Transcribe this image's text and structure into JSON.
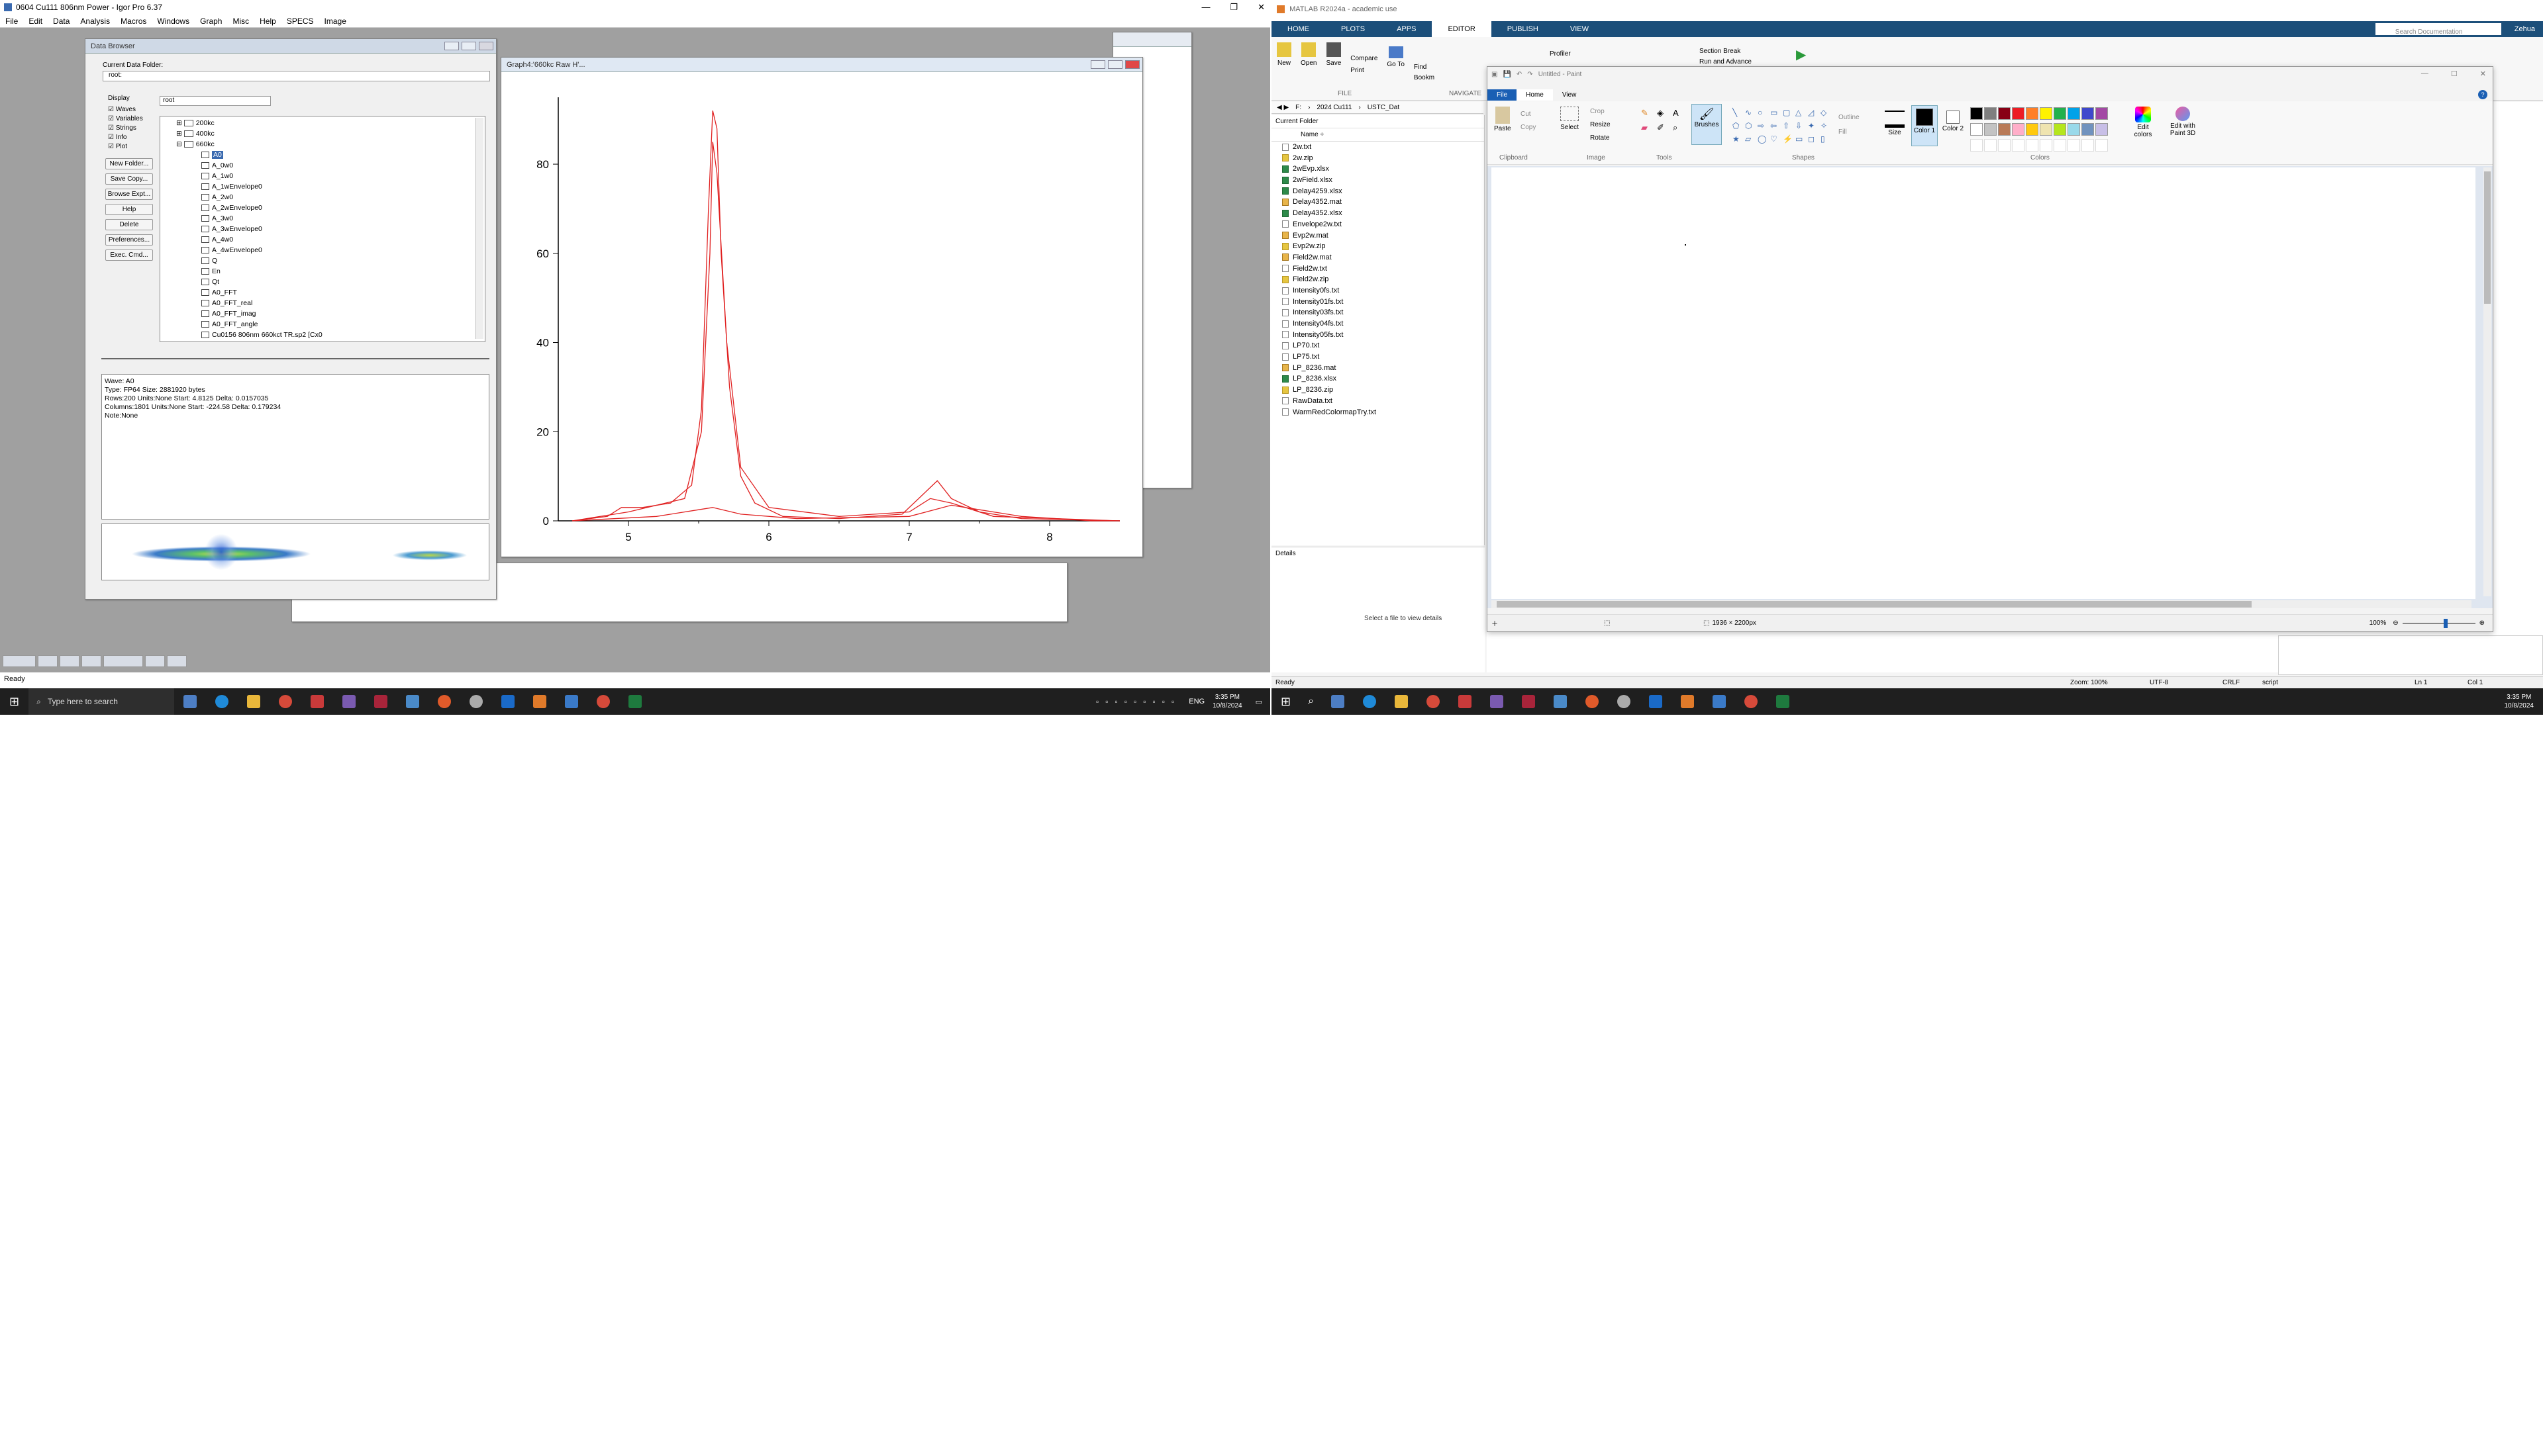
{
  "igor": {
    "title": "0604 Cu111 806nm Power - Igor Pro 6.37",
    "menu": [
      "File",
      "Edit",
      "Data",
      "Analysis",
      "Macros",
      "Windows",
      "Graph",
      "Misc",
      "Help",
      "SPECS",
      "Image"
    ],
    "data_browser": {
      "title": "Data Browser",
      "current_folder_label": "Current Data Folder:",
      "current_folder_value": "root:",
      "display_label": "Display",
      "display_select": "root",
      "checkboxes": [
        "Waves",
        "Variables",
        "Strings",
        "Info",
        "Plot"
      ],
      "buttons": [
        "New Folder...",
        "Save Copy...",
        "Browse Expt...",
        "Help",
        "Delete",
        "Preferences...",
        "Exec. Cmd..."
      ],
      "folders": [
        "200kc",
        "400kc",
        "660kc"
      ],
      "waves": [
        "A0",
        "A_0w0",
        "A_1w0",
        "A_1wEnvelope0",
        "A_2w0",
        "A_2wEnvelope0",
        "A_3w0",
        "A_3wEnvelope0",
        "A_4w0",
        "A_4wEnvelope0",
        "Q",
        "En",
        "Qt",
        "A0_FFT",
        "A0_FFT_real",
        "A0_FFT_imag",
        "A0_FFT_angle",
        "Cu0156 806nm 660kct TR.sp2 [Cx0"
      ],
      "info": {
        "wave": "Wave: A0",
        "type": "Type: FP64  Size: 2881920 bytes",
        "rows": "Rows:200 Units:None Start: 4.8125 Delta: 0.0157035",
        "cols": "Columns:1801 Units:None Start: -224.58 Delta: 0.179234",
        "note": "Note:None"
      }
    },
    "graph": {
      "title": "Graph4:'660kc Raw H'...",
      "y_ticks": [
        "0",
        "20",
        "40",
        "60",
        "80"
      ],
      "x_ticks": [
        "5",
        "6",
        "7",
        "8"
      ]
    },
    "status": "Ready",
    "taskbar": {
      "search": "Type here to search",
      "lang": "ENG",
      "time": "3:35 PM",
      "date": "10/8/2024"
    }
  },
  "chart_data": {
    "type": "line",
    "xlim": [
      4.5,
      8.5
    ],
    "ylim": [
      0,
      95
    ],
    "x_ticks": [
      5,
      6,
      7,
      8
    ],
    "y_ticks": [
      0,
      20,
      40,
      60,
      80
    ],
    "series": [
      {
        "points": [
          [
            4.6,
            0
          ],
          [
            4.85,
            1
          ],
          [
            4.95,
            3
          ],
          [
            5.1,
            3
          ],
          [
            5.3,
            4
          ],
          [
            5.45,
            8
          ],
          [
            5.52,
            25
          ],
          [
            5.57,
            70
          ],
          [
            5.6,
            92
          ],
          [
            5.63,
            88
          ],
          [
            5.66,
            60
          ],
          [
            5.72,
            30
          ],
          [
            5.8,
            10
          ],
          [
            5.9,
            4
          ],
          [
            6.1,
            1
          ],
          [
            6.5,
            0.5
          ],
          [
            6.95,
            1.5
          ],
          [
            7.1,
            6
          ],
          [
            7.2,
            9
          ],
          [
            7.3,
            5
          ],
          [
            7.5,
            2
          ],
          [
            7.8,
            0.5
          ],
          [
            8.5,
            0
          ]
        ]
      },
      {
        "points": [
          [
            4.6,
            0
          ],
          [
            5.0,
            2
          ],
          [
            5.4,
            5
          ],
          [
            5.52,
            20
          ],
          [
            5.58,
            60
          ],
          [
            5.6,
            85
          ],
          [
            5.63,
            78
          ],
          [
            5.7,
            40
          ],
          [
            5.8,
            12
          ],
          [
            6.0,
            3
          ],
          [
            6.5,
            1
          ],
          [
            7.0,
            2
          ],
          [
            7.15,
            5
          ],
          [
            7.3,
            4
          ],
          [
            7.6,
            1
          ],
          [
            8.5,
            0
          ]
        ]
      },
      {
        "points": [
          [
            4.6,
            0
          ],
          [
            5.2,
            1
          ],
          [
            5.5,
            2.5
          ],
          [
            5.6,
            3
          ],
          [
            5.8,
            1.5
          ],
          [
            6.2,
            0.5
          ],
          [
            7.0,
            1
          ],
          [
            7.3,
            3.5
          ],
          [
            7.5,
            2.5
          ],
          [
            7.8,
            1
          ],
          [
            8.3,
            0
          ],
          [
            8.5,
            0
          ]
        ]
      }
    ]
  },
  "matlab": {
    "title": "MATLAB R2024a - academic use",
    "tabs": [
      "HOME",
      "PLOTS",
      "APPS",
      "EDITOR",
      "PUBLISH",
      "VIEW"
    ],
    "active_tab": "EDITOR",
    "search_placeholder": "Search Documentation",
    "user": "Zehua",
    "ribbon": {
      "new": "New",
      "open": "Open",
      "save": "Save",
      "compare": "Compare",
      "print": "Print",
      "goto": "Go To",
      "find": "Find",
      "bookmark": "Bookm",
      "profiler": "Profiler",
      "section_break": "Section Break",
      "run_advance": "Run and Advance",
      "file_group": "FILE",
      "nav_group": "NAVIGATE"
    },
    "path": [
      "F:",
      "2024 Cu111",
      "USTC_Dat"
    ],
    "current_folder": "Current Folder",
    "name_header": "Name ÷",
    "files": [
      {
        "n": "2w.txt",
        "t": "txt"
      },
      {
        "n": "2w.zip",
        "t": "zip"
      },
      {
        "n": "2wEvp.xlsx",
        "t": "xlsx"
      },
      {
        "n": "2wField.xlsx",
        "t": "xlsx"
      },
      {
        "n": "Delay4259.xlsx",
        "t": "xlsx"
      },
      {
        "n": "Delay4352.mat",
        "t": "mat"
      },
      {
        "n": "Delay4352.xlsx",
        "t": "xlsx"
      },
      {
        "n": "Envelope2w.txt",
        "t": "txt"
      },
      {
        "n": "Evp2w.mat",
        "t": "mat"
      },
      {
        "n": "Evp2w.zip",
        "t": "zip"
      },
      {
        "n": "Field2w.mat",
        "t": "mat"
      },
      {
        "n": "Field2w.txt",
        "t": "txt"
      },
      {
        "n": "Field2w.zip",
        "t": "zip"
      },
      {
        "n": "Intensity0fs.txt",
        "t": "txt"
      },
      {
        "n": "Intensity01fs.txt",
        "t": "txt"
      },
      {
        "n": "Intensity03fs.txt",
        "t": "txt"
      },
      {
        "n": "Intensity04fs.txt",
        "t": "txt"
      },
      {
        "n": "Intensity05fs.txt",
        "t": "txt"
      },
      {
        "n": "LP70.txt",
        "t": "txt"
      },
      {
        "n": "LP75.txt",
        "t": "txt"
      },
      {
        "n": "LP_8236.mat",
        "t": "mat"
      },
      {
        "n": "LP_8236.xlsx",
        "t": "xlsx"
      },
      {
        "n": "LP_8236.zip",
        "t": "zip"
      },
      {
        "n": "RawData.txt",
        "t": "txt"
      },
      {
        "n": "WarmRedColormapTry.txt",
        "t": "txt"
      }
    ],
    "details": "Details",
    "details_msg": "Select a file to view details",
    "status": "Ready",
    "status_right": [
      "Zoom: 100%",
      "UTF-8",
      "CRLF",
      "script",
      "Ln 1",
      "Col 1"
    ],
    "taskbar": {
      "time": "3:35 PM",
      "date": "10/8/2024"
    }
  },
  "paint": {
    "title": "Untitled - Paint",
    "tabs": [
      "File",
      "Home",
      "View"
    ],
    "groups": [
      "Clipboard",
      "Image",
      "Tools",
      "Shapes",
      "Colors"
    ],
    "clipboard": {
      "paste": "Paste",
      "cut": "Cut",
      "copy": "Copy"
    },
    "image": {
      "select": "Select",
      "crop": "Crop",
      "resize": "Resize",
      "rotate": "Rotate"
    },
    "brushes": "Brushes",
    "shape_opts": {
      "outline": "Outline",
      "fill": "Fill"
    },
    "size": "Size",
    "color1": "Color 1",
    "color2": "Color 2",
    "edit_colors": "Edit colors",
    "edit_3d": "Edit with Paint 3D",
    "palette": [
      "#000000",
      "#7f7f7f",
      "#880015",
      "#ed1c24",
      "#ff7f27",
      "#fff200",
      "#22b14c",
      "#00a2e8",
      "#3f48cc",
      "#a349a4",
      "#ffffff",
      "#c3c3c3",
      "#b97a57",
      "#ffaec9",
      "#ffc90e",
      "#efe4b0",
      "#b5e61d",
      "#99d9ea",
      "#7092be",
      "#c8bfe7"
    ],
    "canvas_size": "1936 × 2200px",
    "zoom": "100%"
  }
}
